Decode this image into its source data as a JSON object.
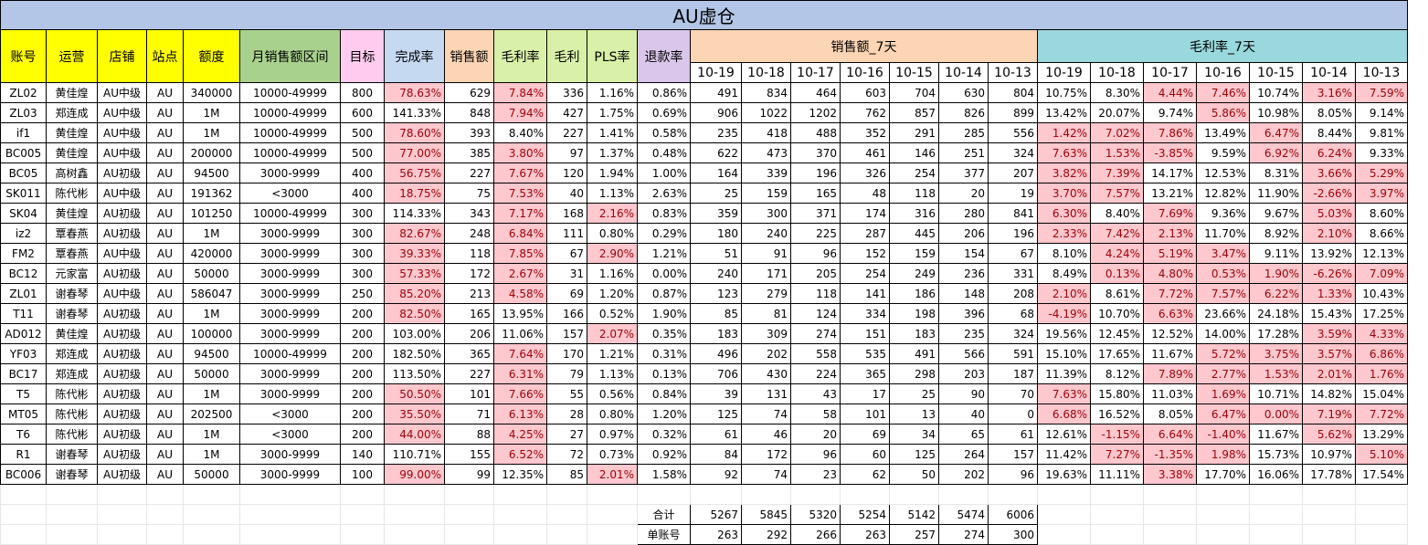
{
  "title": "AU虚仓",
  "headers": [
    "账号",
    "运营",
    "店铺",
    "站点",
    "额度",
    "月销售额区间",
    "目标",
    "完成率",
    "销售额",
    "毛利率",
    "毛利",
    "PLS率",
    "退款率"
  ],
  "group_sales": "销售额_7天",
  "group_margin": "毛利率_7天",
  "dates": [
    "10-19",
    "10-18",
    "10-17",
    "10-16",
    "10-15",
    "10-14",
    "10-13"
  ],
  "rows": [
    {
      "cells": [
        "ZL02",
        "黄佳煌",
        "AU中级",
        "AU",
        "340000",
        "10000-49999",
        "800",
        "78.63%",
        "629",
        "7.84%",
        "336",
        "1.16%",
        "0.86%"
      ],
      "sales": [
        "491",
        "834",
        "464",
        "603",
        "704",
        "630",
        "804"
      ],
      "margin": [
        "10.75%",
        "8.30%",
        "4.44%",
        "7.46%",
        "10.74%",
        "3.16%",
        "7.59%"
      ],
      "hl": [
        7,
        9
      ],
      "mhl": [
        2,
        3,
        5,
        6
      ]
    },
    {
      "cells": [
        "ZL03",
        "郑连成",
        "AU中级",
        "AU",
        "1M",
        "10000-49999",
        "600",
        "141.33%",
        "848",
        "7.94%",
        "427",
        "1.75%",
        "0.69%"
      ],
      "sales": [
        "906",
        "1022",
        "1202",
        "762",
        "857",
        "826",
        "899"
      ],
      "margin": [
        "13.42%",
        "20.07%",
        "9.74%",
        "5.86%",
        "10.98%",
        "8.05%",
        "9.14%"
      ],
      "hl": [
        9
      ],
      "mhl": [
        3
      ]
    },
    {
      "cells": [
        "if1",
        "黄佳煌",
        "AU中级",
        "AU",
        "1M",
        "10000-49999",
        "500",
        "78.60%",
        "393",
        "8.40%",
        "227",
        "1.41%",
        "0.58%"
      ],
      "sales": [
        "235",
        "418",
        "488",
        "352",
        "291",
        "285",
        "556"
      ],
      "margin": [
        "1.42%",
        "7.02%",
        "7.86%",
        "13.49%",
        "6.47%",
        "8.44%",
        "9.81%"
      ],
      "hl": [
        7
      ],
      "mhl": [
        0,
        1,
        2,
        4
      ]
    },
    {
      "cells": [
        "BC005",
        "黄佳煌",
        "AU中级",
        "AU",
        "200000",
        "10000-49999",
        "500",
        "77.00%",
        "385",
        "3.80%",
        "97",
        "1.37%",
        "0.48%"
      ],
      "sales": [
        "622",
        "473",
        "370",
        "461",
        "146",
        "251",
        "324"
      ],
      "margin": [
        "7.63%",
        "1.53%",
        "-3.85%",
        "9.59%",
        "6.92%",
        "6.24%",
        "9.33%"
      ],
      "hl": [
        7,
        9
      ],
      "mhl": [
        0,
        1,
        2,
        4,
        5
      ]
    },
    {
      "cells": [
        "BC05",
        "高树鑫",
        "AU初级",
        "AU",
        "94500",
        "3000-9999",
        "400",
        "56.75%",
        "227",
        "7.67%",
        "120",
        "1.94%",
        "1.00%"
      ],
      "sales": [
        "164",
        "339",
        "196",
        "326",
        "254",
        "377",
        "207"
      ],
      "margin": [
        "3.82%",
        "7.39%",
        "14.17%",
        "12.53%",
        "8.31%",
        "3.66%",
        "5.29%"
      ],
      "hl": [
        7,
        9
      ],
      "mhl": [
        0,
        1,
        5,
        6
      ]
    },
    {
      "cells": [
        "SK011",
        "陈代彬",
        "AU中级",
        "AU",
        "191362",
        "<3000",
        "400",
        "18.75%",
        "75",
        "7.53%",
        "40",
        "1.13%",
        "2.63%"
      ],
      "sales": [
        "25",
        "159",
        "165",
        "48",
        "118",
        "20",
        "19"
      ],
      "margin": [
        "3.70%",
        "7.57%",
        "13.21%",
        "12.82%",
        "11.90%",
        "-2.66%",
        "3.97%"
      ],
      "hl": [
        7,
        9
      ],
      "mhl": [
        0,
        1,
        5,
        6
      ]
    },
    {
      "cells": [
        "SK04",
        "黄佳煌",
        "AU初级",
        "AU",
        "101250",
        "10000-49999",
        "300",
        "114.33%",
        "343",
        "7.17%",
        "168",
        "2.16%",
        "0.83%"
      ],
      "sales": [
        "359",
        "300",
        "371",
        "174",
        "316",
        "280",
        "841"
      ],
      "margin": [
        "6.30%",
        "8.40%",
        "7.69%",
        "9.36%",
        "9.67%",
        "5.03%",
        "8.60%"
      ],
      "hl": [
        9,
        11
      ],
      "mhl": [
        0,
        2,
        5
      ]
    },
    {
      "cells": [
        "iz2",
        "覃春燕",
        "AU初级",
        "AU",
        "1M",
        "3000-9999",
        "300",
        "82.67%",
        "248",
        "6.84%",
        "111",
        "0.80%",
        "0.29%"
      ],
      "sales": [
        "180",
        "240",
        "225",
        "287",
        "445",
        "206",
        "196"
      ],
      "margin": [
        "2.33%",
        "7.42%",
        "2.13%",
        "11.70%",
        "8.92%",
        "2.10%",
        "8.66%"
      ],
      "hl": [
        7,
        9
      ],
      "mhl": [
        0,
        1,
        2,
        5
      ]
    },
    {
      "cells": [
        "FM2",
        "覃春燕",
        "AU中级",
        "AU",
        "420000",
        "3000-9999",
        "300",
        "39.33%",
        "118",
        "7.85%",
        "67",
        "2.90%",
        "1.21%"
      ],
      "sales": [
        "51",
        "91",
        "96",
        "152",
        "159",
        "154",
        "67"
      ],
      "margin": [
        "8.10%",
        "4.24%",
        "5.19%",
        "3.47%",
        "9.11%",
        "13.92%",
        "12.13%"
      ],
      "hl": [
        7,
        9,
        11
      ],
      "mhl": [
        1,
        2,
        3
      ]
    },
    {
      "cells": [
        "BC12",
        "元家富",
        "AU初级",
        "AU",
        "50000",
        "3000-9999",
        "300",
        "57.33%",
        "172",
        "2.67%",
        "31",
        "1.16%",
        "0.00%"
      ],
      "sales": [
        "240",
        "171",
        "205",
        "254",
        "249",
        "236",
        "331"
      ],
      "margin": [
        "8.49%",
        "0.13%",
        "4.80%",
        "0.53%",
        "1.90%",
        "-6.26%",
        "7.09%"
      ],
      "hl": [
        7,
        9
      ],
      "mhl": [
        1,
        2,
        3,
        4,
        5,
        6
      ]
    },
    {
      "cells": [
        "ZL01",
        "谢春琴",
        "AU中级",
        "AU",
        "586047",
        "3000-9999",
        "250",
        "85.20%",
        "213",
        "4.58%",
        "69",
        "1.20%",
        "0.87%"
      ],
      "sales": [
        "123",
        "279",
        "118",
        "141",
        "186",
        "148",
        "208"
      ],
      "margin": [
        "2.10%",
        "8.61%",
        "7.72%",
        "7.57%",
        "6.22%",
        "1.33%",
        "10.43%"
      ],
      "hl": [
        7,
        9
      ],
      "mhl": [
        0,
        2,
        3,
        4,
        5
      ]
    },
    {
      "cells": [
        "T11",
        "谢春琴",
        "AU初级",
        "AU",
        "1M",
        "3000-9999",
        "200",
        "82.50%",
        "165",
        "13.95%",
        "166",
        "0.52%",
        "1.90%"
      ],
      "sales": [
        "85",
        "81",
        "124",
        "334",
        "198",
        "396",
        "68"
      ],
      "margin": [
        "-4.19%",
        "10.70%",
        "6.63%",
        "23.66%",
        "24.18%",
        "15.43%",
        "17.25%"
      ],
      "hl": [
        7
      ],
      "mhl": [
        0,
        2
      ]
    },
    {
      "cells": [
        "AD012",
        "黄佳煌",
        "AU初级",
        "AU",
        "100000",
        "3000-9999",
        "200",
        "103.00%",
        "206",
        "11.06%",
        "157",
        "2.07%",
        "0.35%"
      ],
      "sales": [
        "183",
        "309",
        "274",
        "151",
        "183",
        "235",
        "324"
      ],
      "margin": [
        "19.56%",
        "12.45%",
        "12.52%",
        "14.00%",
        "17.28%",
        "3.59%",
        "4.33%"
      ],
      "hl": [
        11
      ],
      "mhl": [
        5,
        6
      ]
    },
    {
      "cells": [
        "YF03",
        "郑连成",
        "AU初级",
        "AU",
        "94500",
        "10000-49999",
        "200",
        "182.50%",
        "365",
        "7.64%",
        "170",
        "1.21%",
        "0.31%"
      ],
      "sales": [
        "496",
        "202",
        "558",
        "535",
        "491",
        "566",
        "591"
      ],
      "margin": [
        "15.10%",
        "17.65%",
        "11.67%",
        "5.72%",
        "3.75%",
        "3.57%",
        "6.86%"
      ],
      "hl": [
        9
      ],
      "mhl": [
        3,
        4,
        5,
        6
      ]
    },
    {
      "cells": [
        "BC17",
        "郑连成",
        "AU初级",
        "AU",
        "50000",
        "3000-9999",
        "200",
        "113.50%",
        "227",
        "6.31%",
        "79",
        "1.13%",
        "0.13%"
      ],
      "sales": [
        "706",
        "430",
        "224",
        "365",
        "298",
        "203",
        "187"
      ],
      "margin": [
        "11.39%",
        "8.12%",
        "7.89%",
        "2.77%",
        "1.53%",
        "2.01%",
        "1.76%"
      ],
      "hl": [
        9
      ],
      "mhl": [
        2,
        3,
        4,
        5,
        6
      ]
    },
    {
      "cells": [
        "T5",
        "陈代彬",
        "AU初级",
        "AU",
        "1M",
        "3000-9999",
        "200",
        "50.50%",
        "101",
        "7.66%",
        "55",
        "0.56%",
        "0.84%"
      ],
      "sales": [
        "39",
        "131",
        "43",
        "17",
        "25",
        "90",
        "70"
      ],
      "margin": [
        "7.63%",
        "15.80%",
        "11.03%",
        "1.69%",
        "10.71%",
        "14.82%",
        "15.04%"
      ],
      "hl": [
        7,
        9
      ],
      "mhl": [
        0,
        3
      ]
    },
    {
      "cells": [
        "MT05",
        "陈代彬",
        "AU初级",
        "AU",
        "202500",
        "<3000",
        "200",
        "35.50%",
        "71",
        "6.13%",
        "28",
        "0.80%",
        "1.20%"
      ],
      "sales": [
        "125",
        "74",
        "58",
        "101",
        "13",
        "40",
        "0"
      ],
      "margin": [
        "6.68%",
        "16.52%",
        "8.05%",
        "6.47%",
        "0.00%",
        "7.19%",
        "7.72%"
      ],
      "hl": [
        7,
        9
      ],
      "mhl": [
        0,
        3,
        4,
        5,
        6
      ]
    },
    {
      "cells": [
        "T6",
        "陈代彬",
        "AU初级",
        "AU",
        "1M",
        "<3000",
        "200",
        "44.00%",
        "88",
        "4.25%",
        "27",
        "0.97%",
        "0.32%"
      ],
      "sales": [
        "61",
        "46",
        "20",
        "69",
        "34",
        "65",
        "61"
      ],
      "margin": [
        "12.61%",
        "-1.15%",
        "6.64%",
        "-1.40%",
        "11.67%",
        "5.62%",
        "13.29%"
      ],
      "hl": [
        7,
        9
      ],
      "mhl": [
        1,
        2,
        3,
        5
      ]
    },
    {
      "cells": [
        "R1",
        "谢春琴",
        "AU初级",
        "AU",
        "1M",
        "3000-9999",
        "140",
        "110.71%",
        "155",
        "6.52%",
        "72",
        "0.73%",
        "0.92%"
      ],
      "sales": [
        "84",
        "172",
        "96",
        "60",
        "125",
        "264",
        "157"
      ],
      "margin": [
        "11.42%",
        "7.27%",
        "-1.35%",
        "1.98%",
        "15.73%",
        "10.97%",
        "5.10%"
      ],
      "hl": [
        9
      ],
      "mhl": [
        1,
        2,
        3,
        6
      ]
    },
    {
      "cells": [
        "BC006",
        "谢春琴",
        "AU初级",
        "AU",
        "50000",
        "3000-9999",
        "100",
        "99.00%",
        "99",
        "12.35%",
        "85",
        "2.01%",
        "1.58%"
      ],
      "sales": [
        "92",
        "74",
        "23",
        "62",
        "50",
        "202",
        "96"
      ],
      "margin": [
        "19.63%",
        "11.11%",
        "3.38%",
        "17.70%",
        "16.06%",
        "17.78%",
        "17.54%"
      ],
      "hl": [
        7,
        11
      ],
      "mhl": [
        2
      ]
    }
  ],
  "totals": {
    "label": "合计",
    "values": [
      "5267",
      "5845",
      "5320",
      "5254",
      "5142",
      "5474",
      "6006"
    ]
  },
  "per_account": {
    "label": "单账号",
    "values": [
      "263",
      "292",
      "266",
      "263",
      "257",
      "274",
      "300"
    ]
  }
}
